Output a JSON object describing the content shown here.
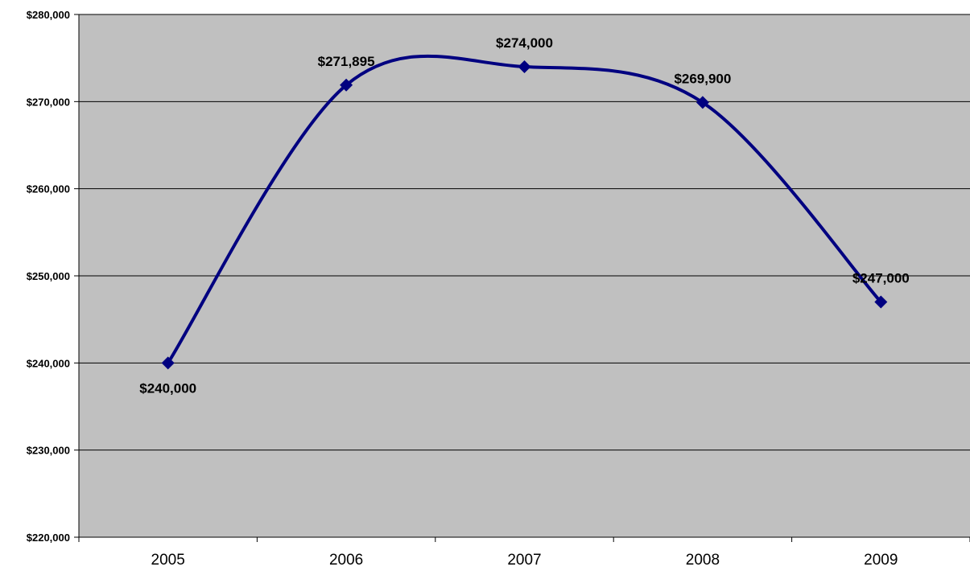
{
  "chart_data": {
    "type": "line",
    "title": "",
    "xlabel": "",
    "ylabel": "",
    "categories": [
      "2005",
      "2006",
      "2007",
      "2008",
      "2009"
    ],
    "series": [
      {
        "values": [
          240000,
          271895,
          274000,
          269900,
          247000
        ]
      }
    ],
    "data_labels": [
      "$240,000",
      "$271,895",
      "$274,000",
      "$269,900",
      "$247,000"
    ],
    "ylim": [
      220000,
      280000
    ],
    "y_tick_values": [
      220000,
      230000,
      240000,
      250000,
      260000,
      270000,
      280000
    ],
    "y_tick_labels": [
      "$220,000",
      "$230,000",
      "$240,000",
      "$250,000",
      "$260,000",
      "$270,000",
      "$280,000"
    ],
    "grid": "horizontal",
    "smoothed": true,
    "marker": "diamond",
    "legend": "none",
    "colors": {
      "line": "#000080",
      "plot_background": "#c0c0c0",
      "gridline": "#000000",
      "text": "#000000"
    }
  }
}
